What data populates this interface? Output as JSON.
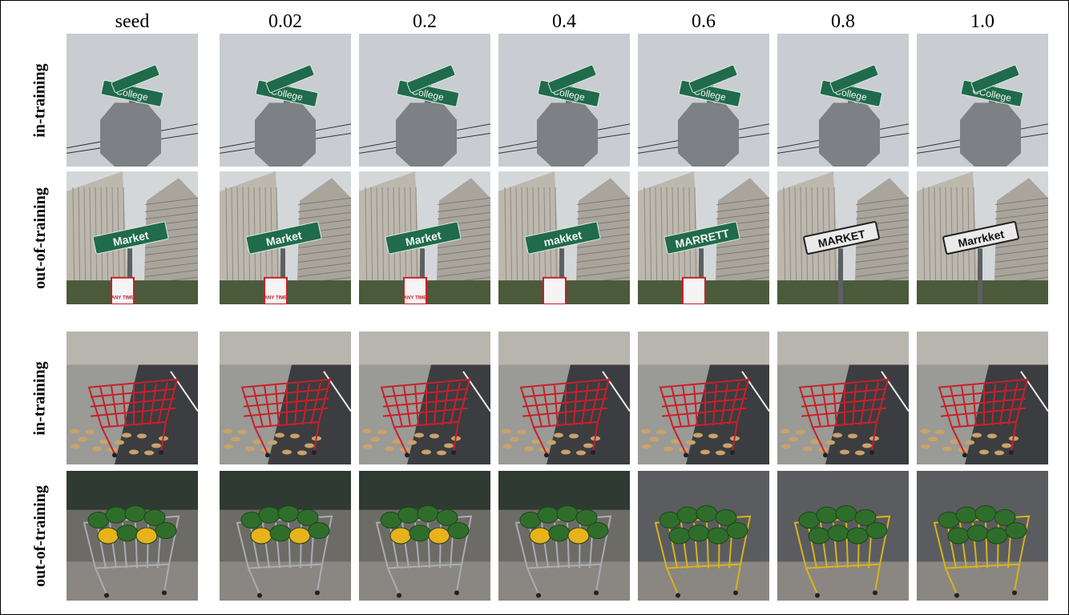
{
  "column_headers": [
    "seed",
    "0.02",
    "0.2",
    "0.4",
    "0.6",
    "0.8",
    "1.0"
  ],
  "row_labels": [
    "in-training",
    "out-of-training",
    "in-training",
    "out-of-training"
  ],
  "sign_texts": {
    "college": [
      "College",
      "College",
      "College",
      "College",
      "College",
      "College",
      "CCollege"
    ],
    "market": [
      "Market",
      "Market",
      "Market",
      "makket",
      "MARRETT",
      "MARKET",
      "Marrkket"
    ],
    "parking": [
      "ANY TIME",
      "ANY TIME",
      "ANY TIME",
      "",
      "",
      "",
      ""
    ]
  },
  "colors": {
    "sky": "#c9cdd2",
    "sign_green": "#1f6b4b",
    "cart_red": "#c8202a",
    "watermelon": "#2f6e2a"
  }
}
